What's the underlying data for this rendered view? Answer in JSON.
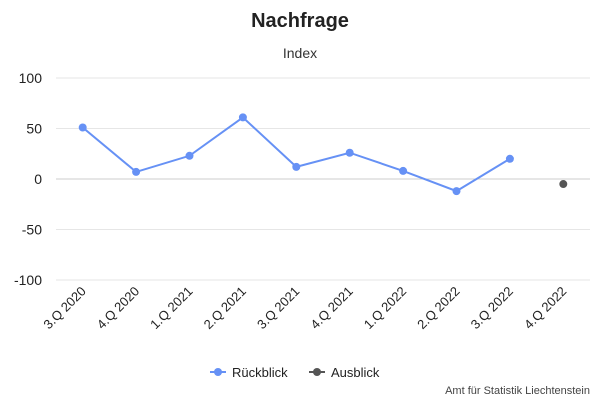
{
  "chart_data": {
    "type": "line",
    "title": "Nachfrage",
    "subtitle": "Index",
    "categories": [
      "3.Q 2020",
      "4.Q 2020",
      "1.Q 2021",
      "2.Q 2021",
      "3.Q 2021",
      "4.Q 2021",
      "1.Q 2022",
      "2.Q 2022",
      "3.Q 2022",
      "4.Q 2022"
    ],
    "series": [
      {
        "name": "Rückblick",
        "color": "#6691f5",
        "values": [
          51,
          7,
          23,
          61,
          12,
          26,
          8,
          -12,
          20,
          null
        ]
      },
      {
        "name": "Ausblick",
        "color": "#555555",
        "values": [
          null,
          null,
          null,
          null,
          null,
          null,
          null,
          null,
          null,
          -5
        ]
      }
    ],
    "ylim": [
      -100,
      100
    ],
    "yticks": [
      100,
      50,
      0,
      -50,
      -100
    ],
    "grid": true,
    "legend": "bottom-center",
    "credit": "Amt für Statistik Liechtenstein"
  }
}
